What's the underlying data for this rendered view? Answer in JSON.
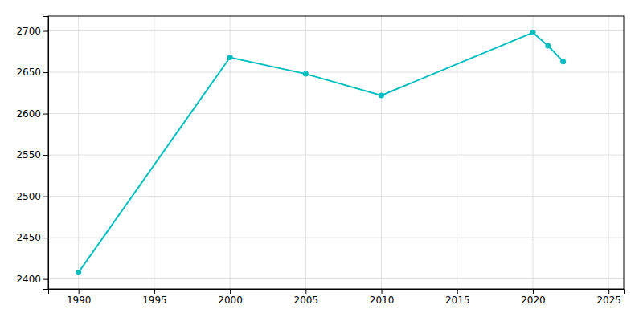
{
  "chart_data": {
    "type": "line",
    "x": [
      1990,
      2000,
      2005,
      2010,
      2020,
      2021,
      2022
    ],
    "values": [
      2408,
      2668,
      2648,
      2622,
      2698,
      2682,
      2663
    ],
    "color": "#00BEBE",
    "marker": "circle",
    "xlim": [
      1988,
      2026
    ],
    "ylim": [
      2388,
      2718
    ],
    "xticks": [
      1990,
      1995,
      2000,
      2005,
      2010,
      2015,
      2020,
      2025
    ],
    "yticks": [
      2400,
      2450,
      2500,
      2550,
      2600,
      2650,
      2700
    ],
    "grid": true
  }
}
